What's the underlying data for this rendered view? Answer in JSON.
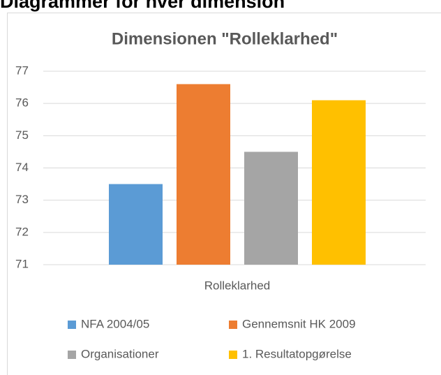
{
  "heading": "Diagrammer for hver dimension",
  "chart_data": {
    "type": "bar",
    "title": "Dimensionen \"Rolleklarhed\"",
    "categories": [
      "Rolleklarhed"
    ],
    "series": [
      {
        "name": "NFA 2004/05",
        "color": "#5b9bd5",
        "values": [
          73.5
        ]
      },
      {
        "name": "Gennemsnit HK 2009",
        "color": "#ed7d31",
        "values": [
          76.6
        ]
      },
      {
        "name": "Organisationer",
        "color": "#a5a5a5",
        "values": [
          74.5
        ]
      },
      {
        "name": "1. Resultatopgørelse",
        "color": "#ffc000",
        "values": [
          76.1
        ]
      }
    ],
    "ylim": [
      71,
      77
    ],
    "yticks": [
      71,
      72,
      73,
      74,
      75,
      76,
      77
    ],
    "grid": true,
    "legend": "bottom"
  }
}
